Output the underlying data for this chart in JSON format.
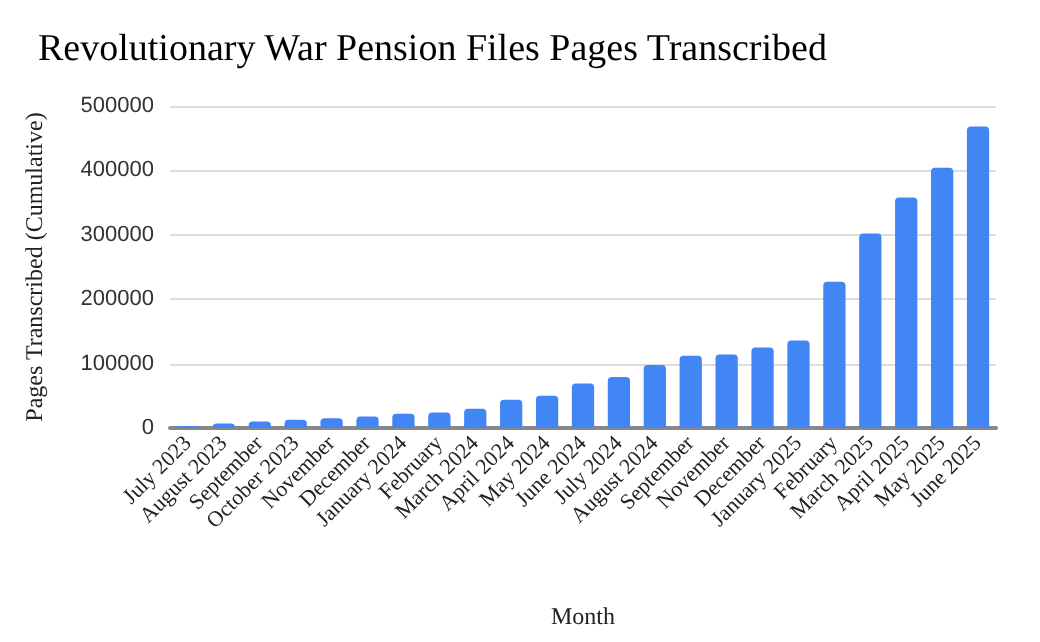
{
  "chart_data": {
    "type": "bar",
    "title": "Revolutionary War Pension Files Pages Transcribed",
    "xlabel": "Month",
    "ylabel": "Pages Transcribed (Cumulative)",
    "categories": [
      "July 2023",
      "August 2023",
      "September",
      "October 2023",
      "November",
      "December",
      "January 2024",
      "February",
      "March 2024",
      "April 2024",
      "May 2024",
      "June 2024",
      "July 2024",
      "August 2024",
      "September",
      "November",
      "December",
      "January 2025",
      "February",
      "March 2025",
      "April 2025",
      "May 2025",
      "June 2025"
    ],
    "values": [
      3000,
      7000,
      10000,
      13000,
      15000,
      18000,
      22000,
      24000,
      30000,
      44000,
      50000,
      69000,
      79000,
      98000,
      112000,
      114000,
      125000,
      136000,
      227000,
      302000,
      358000,
      404000,
      468000
    ],
    "color": "#4285f4",
    "ylim": [
      0,
      500000
    ],
    "yticks": [
      0,
      100000,
      200000,
      300000,
      400000,
      500000
    ],
    "grid": "y"
  }
}
